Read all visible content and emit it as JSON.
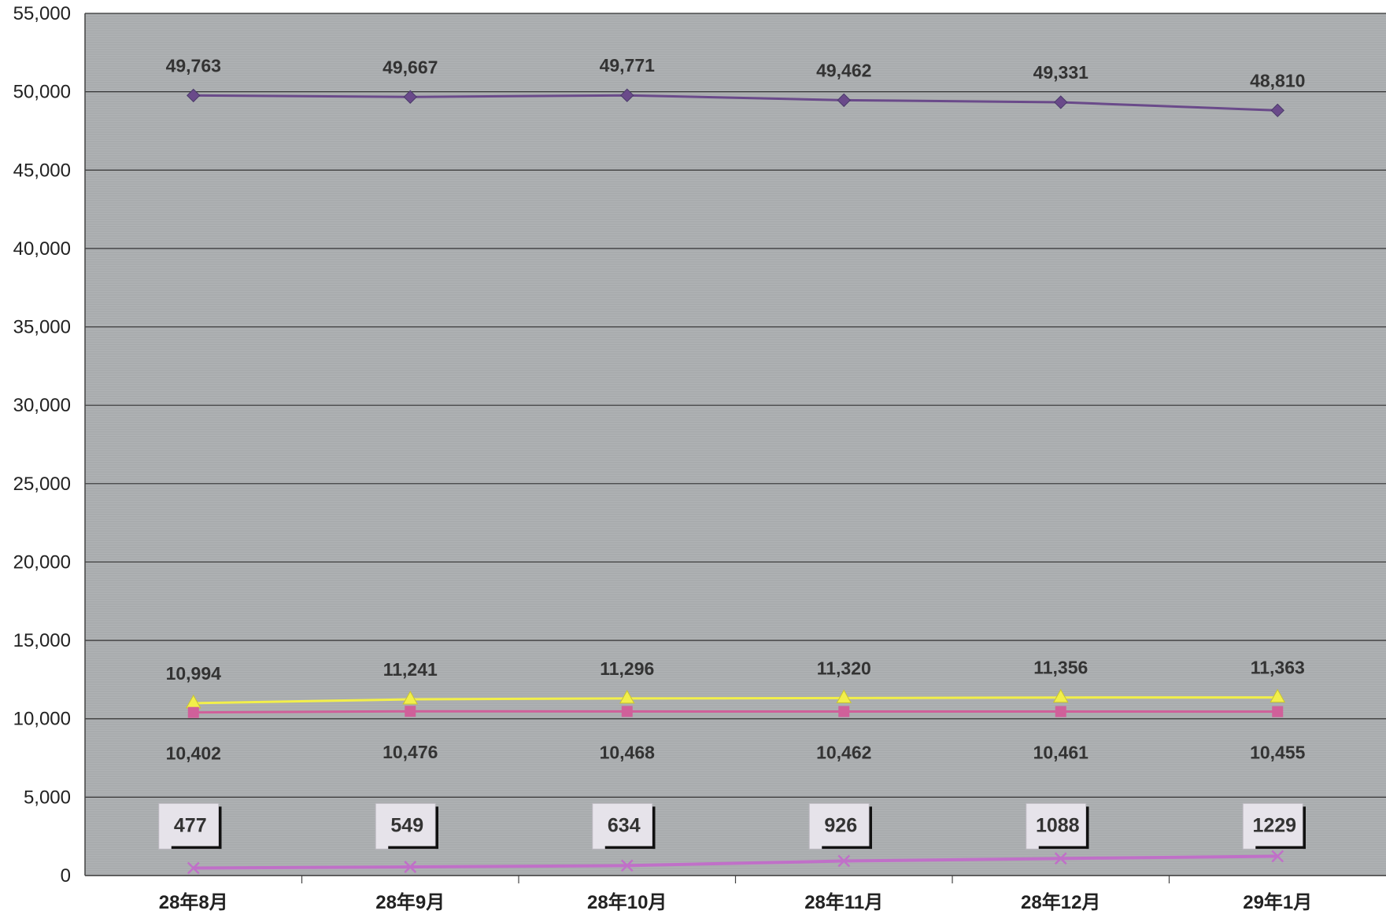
{
  "chart_data": {
    "type": "line",
    "categories": [
      "28年8月",
      "28年9月",
      "28年10月",
      "28年11月",
      "28年12月",
      "29年1月"
    ],
    "ylim": [
      0,
      55000
    ],
    "yticks": [
      0,
      5000,
      10000,
      15000,
      20000,
      25000,
      30000,
      35000,
      40000,
      45000,
      50000,
      55000
    ],
    "ytick_labels": [
      "0",
      "5,000",
      "10,000",
      "15,000",
      "20,000",
      "25,000",
      "30,000",
      "35,000",
      "40,000",
      "45,000",
      "50,000",
      "55,000"
    ],
    "grid": true,
    "legend": "none",
    "series": [
      {
        "values": [
          49763,
          49667,
          49771,
          49462,
          49331,
          48810
        ],
        "labels": [
          "49,763",
          "49,667",
          "49,771",
          "49,462",
          "49,331",
          "48,810"
        ],
        "color": "#6a4a8a",
        "marker": "diamond",
        "label_position": "above"
      },
      {
        "values": [
          10994,
          11241,
          11296,
          11320,
          11356,
          11363
        ],
        "labels": [
          "10,994",
          "11,241",
          "11,296",
          "11,320",
          "11,356",
          "11,363"
        ],
        "color": "#f2ef4a",
        "marker": "triangle",
        "label_position": "above"
      },
      {
        "values": [
          10402,
          10476,
          10468,
          10462,
          10461,
          10455
        ],
        "labels": [
          "10,402",
          "10,476",
          "10,468",
          "10,462",
          "10,461",
          "10,455"
        ],
        "color": "#d0609a",
        "marker": "square",
        "label_position": "below"
      },
      {
        "values": [
          477,
          549,
          634,
          926,
          1088,
          1229
        ],
        "labels": [
          "477",
          "549",
          "634",
          "926",
          "1088",
          "1229"
        ],
        "color": "#c070c8",
        "marker": "x",
        "label_position": "box"
      }
    ]
  },
  "style": {
    "plot_background": "#a9acae",
    "grid_color": "#333333",
    "axis_color": "#444444"
  }
}
